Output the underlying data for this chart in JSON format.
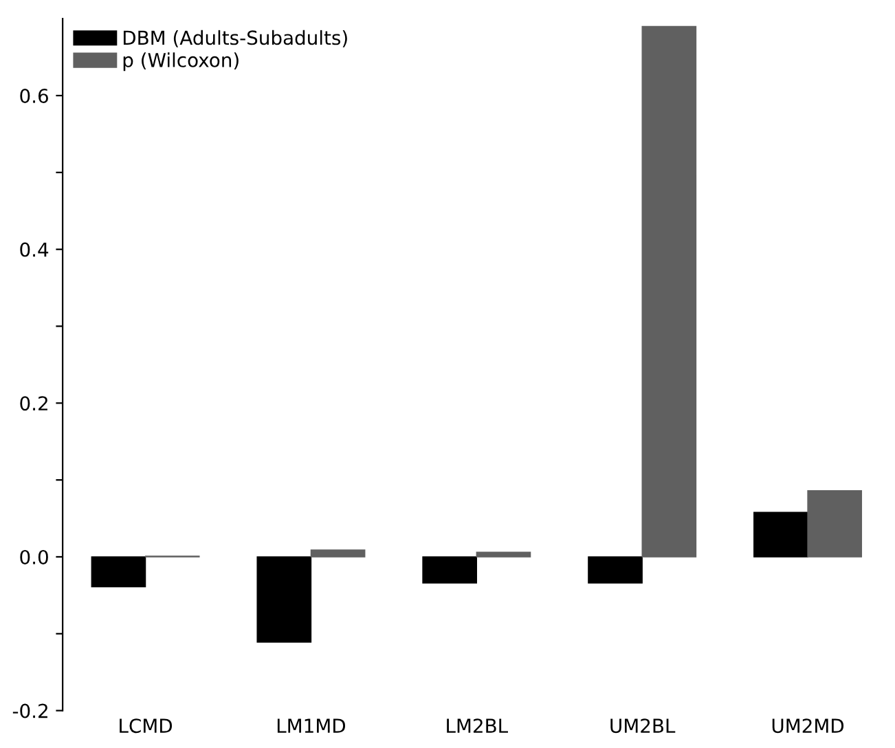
{
  "chart_data": {
    "type": "bar",
    "categories": [
      "LCMD",
      "LM1MD",
      "LM2BL",
      "UM2BL",
      "UM2MD"
    ],
    "series": [
      {
        "name": "DBM (Adults-Subadults)",
        "color": "#000000",
        "values": [
          -0.039,
          -0.111,
          -0.034,
          -0.034,
          0.058
        ]
      },
      {
        "name": "p (Wilcoxon)",
        "color": "#606060",
        "values": [
          0.001,
          0.009,
          0.006,
          0.69,
          0.086
        ]
      }
    ],
    "ylim": [
      -0.2,
      0.7
    ],
    "yticks": [
      -0.2,
      {
        "value": -0.1,
        "label": null
      },
      {
        "value": 0,
        "label": "0.0"
      },
      {
        "value": 0.1,
        "label": null
      },
      0.2,
      {
        "value": 0.3,
        "label": null
      },
      0.4,
      {
        "value": 0.5,
        "label": null
      },
      0.6
    ],
    "grid": false,
    "legend": "top left"
  }
}
